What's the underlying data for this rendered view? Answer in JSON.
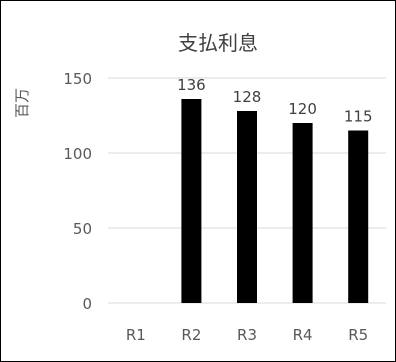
{
  "chart_data": {
    "type": "bar",
    "title": "支払利息",
    "ylabel": "百万",
    "xlabel": "",
    "categories": [
      "R1",
      "R2",
      "R3",
      "R4",
      "R5"
    ],
    "values": [
      null,
      136,
      128,
      120,
      115
    ],
    "data_labels": [
      "",
      "136",
      "128",
      "120",
      "115"
    ],
    "ylim": [
      0,
      150
    ],
    "yticks": [
      0,
      50,
      100,
      150
    ],
    "ytick_labels": [
      "0",
      "50",
      "100",
      "150"
    ],
    "grid": true,
    "legend": "none",
    "colors": {
      "bar": "#000000",
      "grid": "#d9d9d9",
      "axis_text": "#595959",
      "title": "#404040",
      "data_label": "#404040",
      "frame": "#000000"
    }
  }
}
